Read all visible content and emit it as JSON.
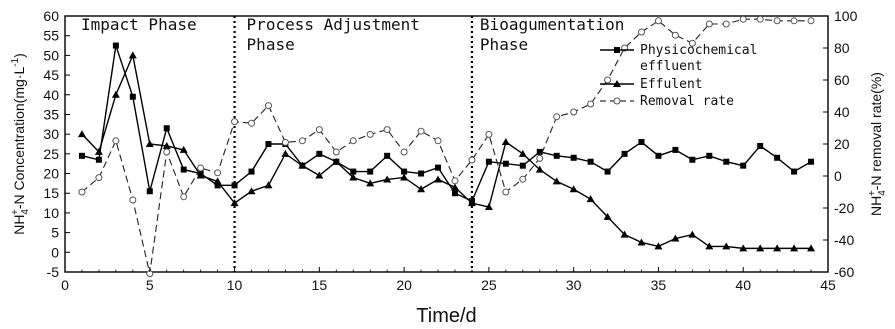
{
  "chart_data": {
    "type": "line",
    "xlabel": "Time/d",
    "ylabel_left": {
      "prefix": "NH",
      "sub": "4",
      "sup": "+",
      "suffix": "-N Concentration(mg·L",
      "sup2": "-1",
      "close": ")"
    },
    "ylabel_right": {
      "prefix": "NH",
      "sub": "4",
      "sup": "+",
      "suffix": "-N removal rate(%)"
    },
    "xlim": [
      0,
      45
    ],
    "ylim_left": [
      -5,
      60
    ],
    "ylim_right": [
      -60,
      100
    ],
    "x_ticks": [
      "0",
      "5",
      "10",
      "15",
      "20",
      "25",
      "30",
      "35",
      "40",
      "45"
    ],
    "y_left_ticks": [
      "-5",
      "0",
      "5",
      "10",
      "15",
      "20",
      "25",
      "30",
      "35",
      "40",
      "45",
      "50",
      "55",
      "60"
    ],
    "y_right_ticks": [
      "-60",
      "-40",
      "-20",
      "0",
      "20",
      "40",
      "60",
      "80",
      "100"
    ],
    "phase_dividers": [
      10,
      24
    ],
    "phases": [
      {
        "lines": [
          "Impact Phase"
        ]
      },
      {
        "lines": [
          "Process Adjustment",
          "Phase"
        ]
      },
      {
        "lines": [
          "Bioagumentation",
          "Phase"
        ]
      }
    ],
    "legend": {
      "position": "top-right",
      "entries": [
        {
          "lines": [
            "Physicochemical",
            "effluent"
          ],
          "marker": "square",
          "dash": "solid"
        },
        {
          "lines": [
            "Effulent"
          ],
          "marker": "triangle",
          "dash": "solid"
        },
        {
          "lines": [
            "Removal rate"
          ],
          "marker": "circle-open",
          "dash": "dashed"
        }
      ]
    },
    "series": [
      {
        "axis": "left",
        "marker": "square",
        "dash": "solid",
        "x": [
          1,
          2,
          3,
          4,
          5,
          6,
          7,
          8,
          9,
          10,
          11,
          12,
          13,
          14,
          15,
          16,
          17,
          18,
          19,
          20,
          21,
          22,
          23,
          24,
          25,
          26,
          27,
          28,
          29,
          30,
          31,
          32,
          33,
          34,
          35,
          36,
          37,
          38,
          39,
          40,
          41,
          42,
          43,
          44
        ],
        "values": [
          24.5,
          23.5,
          52.5,
          39.5,
          15.5,
          31.5,
          21,
          20,
          17,
          17,
          20.5,
          27.5,
          27.5,
          22,
          25,
          23,
          20.5,
          20.5,
          24.5,
          20.5,
          20,
          21.5,
          15,
          13,
          23,
          22.5,
          22,
          25.5,
          24.5,
          24,
          23,
          20.5,
          25,
          28,
          24.5,
          26,
          23.5,
          24.5,
          23,
          22,
          27,
          24,
          20.5,
          23
        ]
      },
      {
        "axis": "left",
        "marker": "triangle",
        "dash": "solid",
        "x": [
          1,
          2,
          3,
          4,
          5,
          6,
          7,
          8,
          9,
          10,
          11,
          12,
          13,
          14,
          15,
          16,
          17,
          18,
          19,
          20,
          21,
          22,
          23,
          24,
          25,
          26,
          27,
          28,
          29,
          30,
          31,
          32,
          33,
          34,
          35,
          36,
          37,
          38,
          39,
          40,
          41,
          42,
          43,
          44
        ],
        "values": [
          30,
          25.5,
          40,
          50,
          27.5,
          27,
          26,
          19.5,
          18,
          12.5,
          15.5,
          17,
          25,
          22,
          19.5,
          23,
          19,
          17.5,
          18.5,
          19,
          16,
          18.5,
          16.5,
          12.5,
          11.5,
          28,
          25,
          21,
          18,
          16,
          13.5,
          9,
          4.5,
          2.5,
          1.5,
          3.5,
          4.5,
          1.5,
          1.5,
          1,
          1,
          1,
          1,
          1
        ]
      },
      {
        "axis": "right",
        "marker": "circle-open",
        "dash": "dashed",
        "x": [
          1,
          2,
          3,
          4,
          5,
          6,
          7,
          8,
          9,
          10,
          11,
          12,
          13,
          14,
          15,
          16,
          17,
          18,
          19,
          20,
          21,
          22,
          23,
          24,
          25,
          26,
          27,
          28,
          29,
          30,
          31,
          32,
          33,
          34,
          35,
          36,
          37,
          38,
          39,
          40,
          41,
          42,
          43,
          44
        ],
        "values": [
          -10,
          -1,
          22,
          -15,
          -61,
          15,
          -13,
          5,
          2,
          34,
          33,
          44,
          21,
          22,
          29,
          15,
          22,
          26,
          29,
          15,
          28,
          22,
          -3,
          10,
          26,
          -10,
          -2,
          11,
          37,
          40,
          45,
          60,
          80,
          90,
          97,
          88,
          83,
          95,
          95,
          98,
          98,
          97,
          97,
          97
        ]
      }
    ]
  }
}
